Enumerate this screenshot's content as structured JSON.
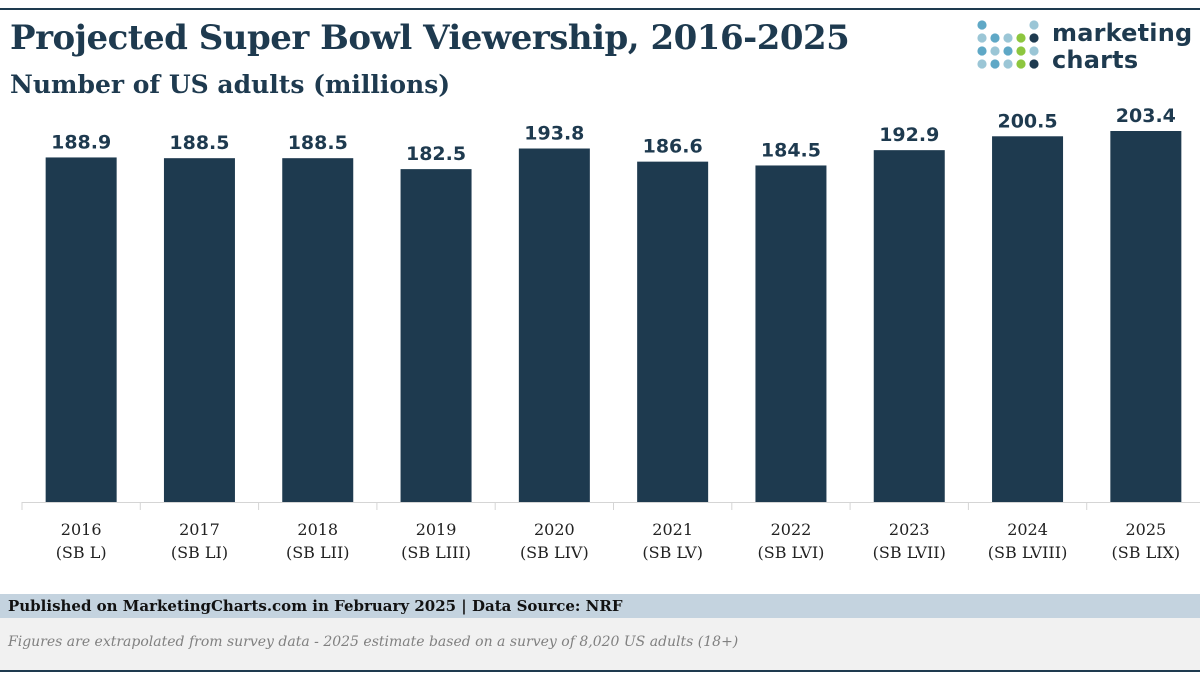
{
  "header": {
    "title": "Projected Super Bowl Viewership, 2016-2025",
    "subtitle": "Number of US adults (millions)"
  },
  "logo": {
    "line1": "marketing",
    "line2": "charts",
    "dot_colors": [
      "#5fa8c6",
      "#9bc6d6",
      "#8dc63f",
      "#1e3a4f"
    ]
  },
  "chart_data": {
    "type": "bar",
    "title": "Projected Super Bowl Viewership, 2016-2025",
    "subtitle": "Number of US adults (millions)",
    "categories": [
      [
        "2016",
        "(SB L)"
      ],
      [
        "2017",
        "(SB LI)"
      ],
      [
        "2018",
        "(SB LII)"
      ],
      [
        "2019",
        "(SB LIII)"
      ],
      [
        "2020",
        "(SB LIV)"
      ],
      [
        "2021",
        "(SB LV)"
      ],
      [
        "2022",
        "(SB LVI)"
      ],
      [
        "2023",
        "(SB LVII)"
      ],
      [
        "2024",
        "(SB LVIII)"
      ],
      [
        "2025",
        "(SB LIX)"
      ]
    ],
    "values": [
      188.9,
      188.5,
      188.5,
      182.5,
      193.8,
      186.6,
      184.5,
      192.9,
      200.5,
      203.4
    ],
    "value_labels": [
      "188.9",
      "188.5",
      "188.5",
      "182.5",
      "193.8",
      "186.6",
      "184.5",
      "192.9",
      "200.5",
      "203.4"
    ],
    "xlabel": "",
    "ylabel": "",
    "ylim": [
      0,
      210
    ],
    "grid": false,
    "legend": "none",
    "bar_color": "#1e3a4f"
  },
  "footer": {
    "published": "Published on MarketingCharts.com in February 2025 | Data Source: NRF",
    "note": "Figures are extrapolated from survey data - 2025 estimate based on a survey of 8,020 US adults (18+)"
  }
}
